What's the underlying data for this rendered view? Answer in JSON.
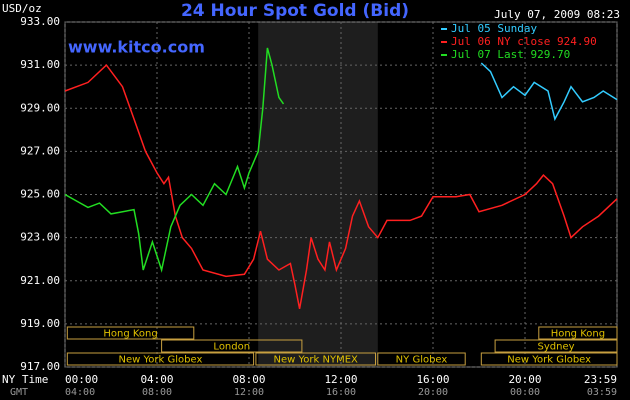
{
  "chart_data": {
    "type": "line",
    "title": "24 Hour Spot Gold (Bid)",
    "subtitle": "July 07, 2009 08:23",
    "y_label": "USD/oz",
    "watermark": "www.kitco.com",
    "x_label": "NY Time",
    "x2_label": "GMT",
    "xlim": [
      0,
      24
    ],
    "xticks": [
      {
        "value": 0,
        "label": "00:00"
      },
      {
        "value": 4,
        "label": "04:00"
      },
      {
        "value": 8,
        "label": "08:00"
      },
      {
        "value": 12,
        "label": "12:00"
      },
      {
        "value": 16,
        "label": "16:00"
      },
      {
        "value": 20,
        "label": "20:00"
      },
      {
        "value": 24,
        "label": "23:59"
      }
    ],
    "x2ticks": [
      {
        "value": 0,
        "label": "04:00"
      },
      {
        "value": 4,
        "label": "08:00"
      },
      {
        "value": 8,
        "label": "12:00"
      },
      {
        "value": 12,
        "label": "16:00"
      },
      {
        "value": 16,
        "label": "20:00"
      },
      {
        "value": 20,
        "label": "00:00"
      },
      {
        "value": 24,
        "label": "03:59"
      }
    ],
    "ylim": [
      917,
      933
    ],
    "yticks": [
      {
        "value": 917,
        "label": "917.00"
      },
      {
        "value": 919,
        "label": "919.00"
      },
      {
        "value": 921,
        "label": "921.00"
      },
      {
        "value": 923,
        "label": "923.00"
      },
      {
        "value": 925,
        "label": "925.00"
      },
      {
        "value": 927,
        "label": "927.00"
      },
      {
        "value": 929,
        "label": "929.00"
      },
      {
        "value": 931,
        "label": "931.00"
      },
      {
        "value": 933,
        "label": "933.00"
      }
    ],
    "grid": true,
    "highlight_span": [
      8.4,
      13.6
    ],
    "sessions": [
      {
        "label": "Hong Kong",
        "start": 0.1,
        "end": 5.6,
        "row": 0
      },
      {
        "label": "Hong Kong",
        "start": 20.6,
        "end": 24,
        "row": 0
      },
      {
        "label": "London",
        "start": 4.2,
        "end": 10.3,
        "row": 1
      },
      {
        "label": "Sydney",
        "start": 18.7,
        "end": 24,
        "row": 1
      },
      {
        "label": "New York Globex",
        "start": 0.1,
        "end": 8.2,
        "row": 2
      },
      {
        "label": "New York NYMEX",
        "start": 8.3,
        "end": 13.5,
        "row": 2
      },
      {
        "label": "NY Globex",
        "start": 13.6,
        "end": 17.4,
        "row": 2
      },
      {
        "label": "New York Globex",
        "start": 18.1,
        "end": 24,
        "row": 2
      }
    ],
    "series": [
      {
        "name": "Jul 05 Sunday",
        "color": "#33ccff",
        "x": [
          18.1,
          18.5,
          19,
          19.5,
          20,
          20.4,
          21,
          21.3,
          21.7,
          22,
          22.5,
          23,
          23.4,
          24
        ],
        "values": [
          931.1,
          930.7,
          929.5,
          930,
          929.6,
          930.2,
          929.8,
          928.5,
          929.3,
          930,
          929.3,
          929.5,
          929.8,
          929.4
        ]
      },
      {
        "name": "Jul 06 NY close 924.90",
        "color": "#ff2020",
        "x": [
          0,
          1,
          1.8,
          2.5,
          3,
          3.5,
          4,
          4.3,
          4.5,
          4.8,
          5.1,
          5.5,
          6,
          7,
          7.8,
          8.2,
          8.5,
          8.8,
          9.3,
          9.8,
          10,
          10.2,
          10.5,
          10.7,
          11,
          11.3,
          11.5,
          11.8,
          12.2,
          12.5,
          12.8,
          13.2,
          13.6,
          14,
          15,
          15.5,
          16,
          17,
          17.6,
          18,
          19,
          20,
          20.5,
          20.8,
          21.2,
          21.7,
          22,
          22.5,
          23.2,
          24
        ],
        "values": [
          929.8,
          930.2,
          931,
          930,
          928.5,
          927,
          926,
          925.5,
          925.8,
          924,
          923,
          922.5,
          921.5,
          921.2,
          921.3,
          922,
          923.3,
          922,
          921.5,
          921.8,
          920.8,
          919.7,
          921.5,
          923,
          922,
          921.5,
          922.8,
          921.5,
          922.5,
          924,
          924.7,
          923.5,
          923,
          923.8,
          923.8,
          924,
          924.9,
          924.9,
          925,
          924.2,
          924.5,
          925,
          925.5,
          925.9,
          925.5,
          924,
          923,
          923.5,
          924,
          924.8
        ]
      },
      {
        "name": "Jul 07 Last 929.70",
        "color": "#22dd22",
        "x": [
          0,
          0.5,
          1,
          1.5,
          2,
          3,
          3.2,
          3.4,
          3.8,
          4.2,
          4.6,
          5,
          5.5,
          6,
          6.5,
          7,
          7.5,
          7.8,
          8,
          8.4,
          8.6,
          8.8,
          9,
          9.3,
          9.5
        ],
        "values": [
          925,
          924.7,
          924.4,
          924.6,
          924.1,
          924.3,
          923.2,
          921.5,
          922.8,
          921.5,
          923.5,
          924.5,
          925,
          924.5,
          925.5,
          925,
          926.3,
          925.3,
          926,
          927,
          929,
          931.8,
          931,
          929.5,
          929.2
        ]
      }
    ]
  }
}
